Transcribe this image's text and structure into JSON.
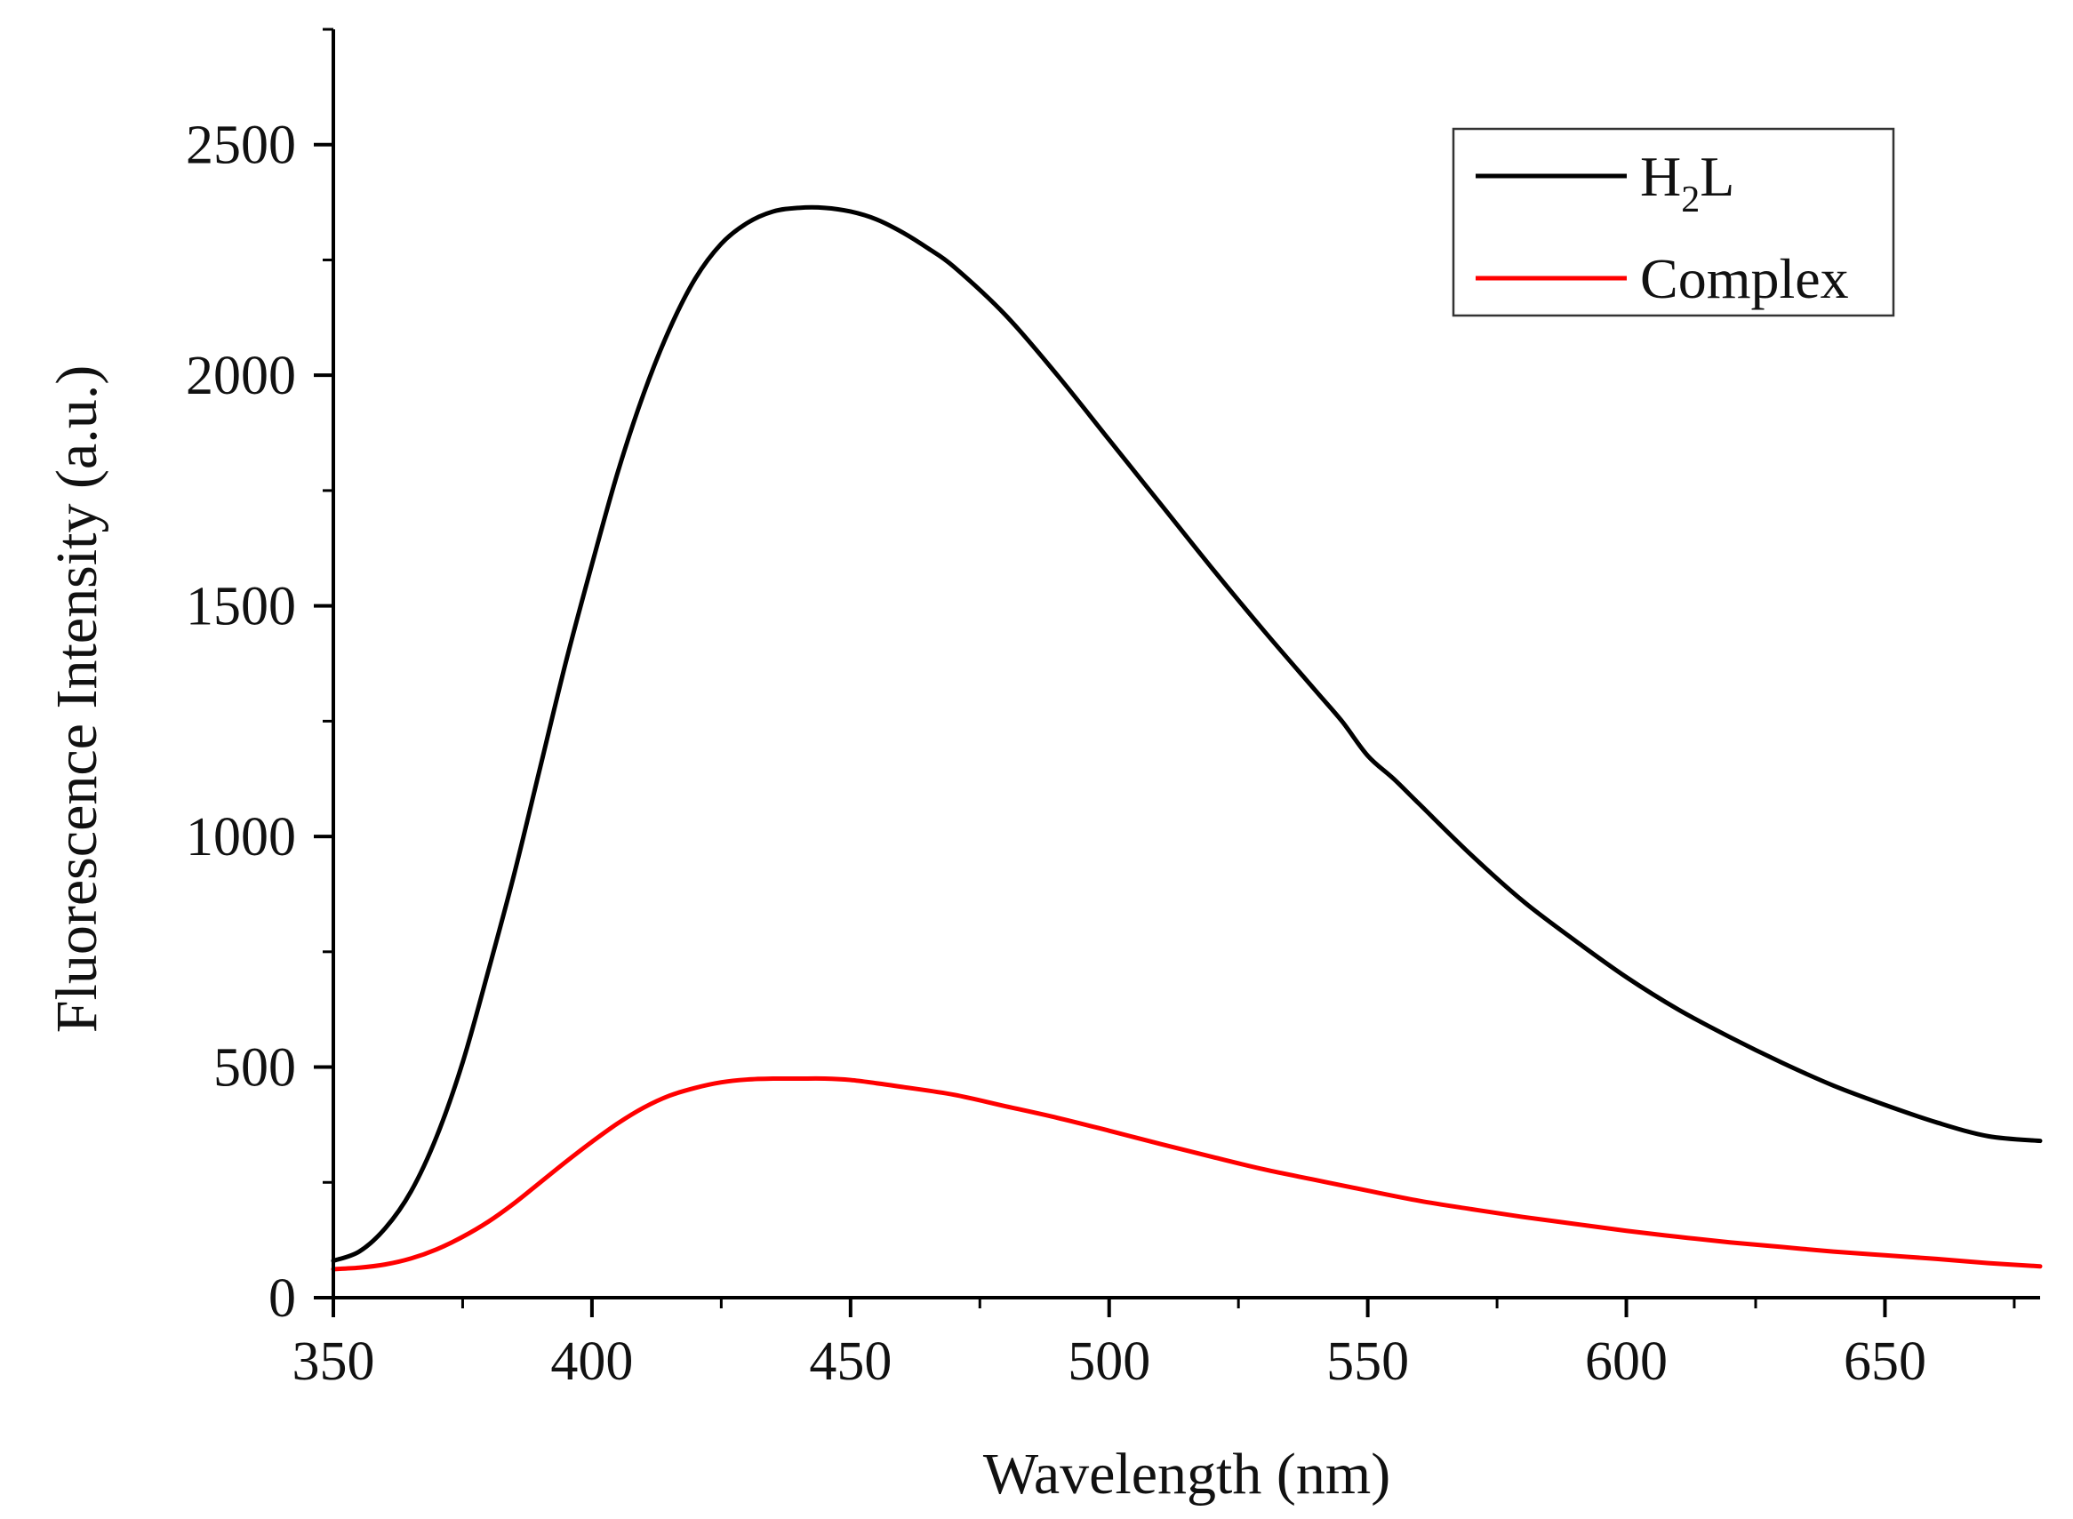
{
  "chart_data": {
    "type": "line",
    "title": "",
    "xlabel": "Wavelength (nm)",
    "ylabel": "Fluorescence Intensity (a.u.)",
    "xlim": [
      350,
      680
    ],
    "ylim": [
      0,
      2750
    ],
    "x_ticks": [
      350,
      400,
      450,
      500,
      550,
      600,
      650
    ],
    "y_ticks": [
      0,
      500,
      1000,
      1500,
      2000,
      2500
    ],
    "x_minor_step": 25,
    "y_minor_step": 250,
    "legend_position": "top-right",
    "series": [
      {
        "name": "H2L",
        "legend_main": "H",
        "legend_sub": "2",
        "legend_tail": "L",
        "color": "#000000",
        "x": [
          350,
          355,
          360,
          365,
          370,
          375,
          380,
          385,
          390,
          395,
          400,
          405,
          410,
          415,
          420,
          425,
          430,
          435,
          440,
          445,
          450,
          455,
          460,
          465,
          470,
          480,
          490,
          500,
          510,
          520,
          530,
          540,
          545,
          550,
          555,
          560,
          570,
          580,
          590,
          600,
          610,
          620,
          630,
          640,
          650,
          660,
          670,
          680
        ],
        "values": [
          80,
          100,
          150,
          230,
          350,
          510,
          710,
          920,
          1150,
          1380,
          1590,
          1790,
          1960,
          2100,
          2210,
          2285,
          2330,
          2355,
          2363,
          2363,
          2355,
          2338,
          2310,
          2275,
          2235,
          2130,
          2000,
          1860,
          1720,
          1580,
          1445,
          1315,
          1250,
          1175,
          1125,
          1070,
          960,
          860,
          775,
          695,
          625,
          565,
          510,
          460,
          418,
          380,
          350,
          340
        ]
      },
      {
        "name": "Complex",
        "legend_main": "Complex",
        "legend_sub": "",
        "legend_tail": "",
        "color": "#ff0000",
        "x": [
          350,
          355,
          360,
          365,
          370,
          375,
          380,
          385,
          390,
          395,
          400,
          405,
          410,
          415,
          420,
          425,
          430,
          435,
          440,
          445,
          450,
          455,
          460,
          470,
          480,
          490,
          500,
          510,
          520,
          530,
          540,
          550,
          560,
          570,
          580,
          590,
          600,
          610,
          620,
          630,
          640,
          650,
          660,
          670,
          680
        ],
        "values": [
          62,
          65,
          72,
          85,
          105,
          132,
          165,
          205,
          250,
          295,
          338,
          378,
          412,
          438,
          455,
          467,
          473,
          475,
          475,
          475,
          472,
          465,
          457,
          440,
          415,
          390,
          362,
          333,
          305,
          278,
          255,
          232,
          210,
          192,
          175,
          160,
          145,
          132,
          120,
          110,
          100,
          92,
          84,
          75,
          68
        ]
      }
    ]
  }
}
